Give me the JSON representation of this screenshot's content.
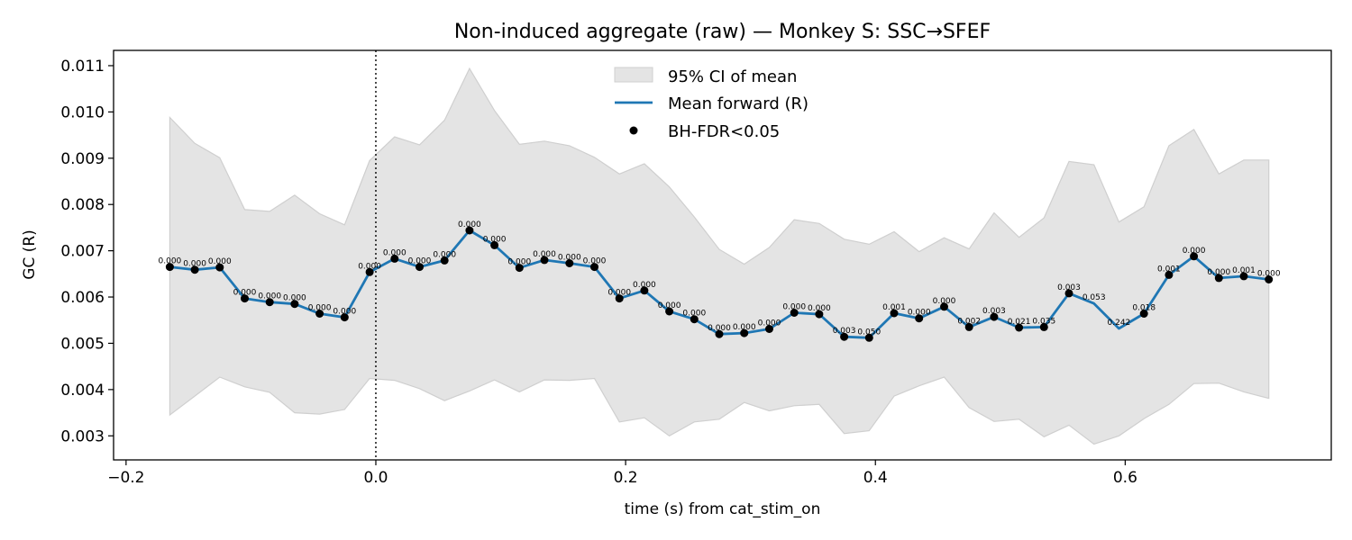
{
  "chart_data": {
    "type": "line",
    "title": "Non-induced aggregate (raw) — Monkey S: SSC→SFEF",
    "xlabel": "time (s) from cat_stim_on",
    "ylabel": "GC (R)",
    "xlim": [
      -0.21,
      0.765
    ],
    "ylim": [
      0.00248,
      0.01133
    ],
    "xticks": [
      -0.2,
      0.0,
      0.2,
      0.4,
      0.6
    ],
    "xtick_labels": [
      "−0.2",
      "0.0",
      "0.2",
      "0.4",
      "0.6"
    ],
    "yticks": [
      0.003,
      0.004,
      0.005,
      0.006,
      0.007,
      0.008,
      0.009,
      0.01,
      0.011
    ],
    "ytick_labels": [
      "0.003",
      "0.004",
      "0.005",
      "0.006",
      "0.007",
      "0.008",
      "0.009",
      "0.010",
      "0.011"
    ],
    "vline_x": 0.0,
    "grid": false,
    "legend_position": "top-center",
    "legend": [
      "95% CI of mean",
      "Mean forward (R)",
      "BH-FDR<0.05"
    ],
    "colors": {
      "line": "#1f77b4",
      "band": "#e4e4e4",
      "band_edge": "#cfcfcf",
      "marker": "#000000"
    },
    "x": [
      -0.165,
      -0.145,
      -0.125,
      -0.105,
      -0.085,
      -0.065,
      -0.045,
      -0.025,
      -0.005,
      0.015,
      0.035,
      0.055,
      0.075,
      0.095,
      0.115,
      0.135,
      0.155,
      0.175,
      0.195,
      0.215,
      0.235,
      0.255,
      0.275,
      0.295,
      0.315,
      0.335,
      0.355,
      0.375,
      0.395,
      0.415,
      0.435,
      0.455,
      0.475,
      0.495,
      0.515,
      0.535,
      0.555,
      0.575,
      0.595,
      0.615,
      0.635,
      0.655,
      0.675,
      0.695,
      0.715
    ],
    "mean": [
      0.00665,
      0.00659,
      0.00664,
      0.00597,
      0.00589,
      0.00585,
      0.00564,
      0.00556,
      0.00654,
      0.00683,
      0.00665,
      0.00679,
      0.00744,
      0.00712,
      0.00663,
      0.0068,
      0.00673,
      0.00665,
      0.00597,
      0.00614,
      0.00569,
      0.00552,
      0.0052,
      0.00522,
      0.00531,
      0.00566,
      0.00563,
      0.00514,
      0.00512,
      0.00565,
      0.00554,
      0.00579,
      0.00535,
      0.00557,
      0.00534,
      0.00535,
      0.00608,
      0.00586,
      0.00532,
      0.00564,
      0.00648,
      0.00688,
      0.00641,
      0.00645,
      0.00638
    ],
    "ci_upper": [
      0.00988,
      0.00932,
      0.00901,
      0.00789,
      0.00785,
      0.0082,
      0.0078,
      0.00756,
      0.00895,
      0.00946,
      0.00929,
      0.00982,
      0.01094,
      0.01003,
      0.0093,
      0.00937,
      0.00927,
      0.00902,
      0.00866,
      0.00888,
      0.00838,
      0.00773,
      0.00703,
      0.00671,
      0.00707,
      0.00767,
      0.00759,
      0.00725,
      0.00714,
      0.00741,
      0.00698,
      0.00728,
      0.00704,
      0.00782,
      0.00729,
      0.00771,
      0.00893,
      0.00886,
      0.00762,
      0.00795,
      0.00927,
      0.00962,
      0.00866,
      0.00896,
      0.00896
    ],
    "ci_lower": [
      0.00345,
      0.00386,
      0.00427,
      0.00406,
      0.00394,
      0.0035,
      0.00347,
      0.00357,
      0.00424,
      0.0042,
      0.00402,
      0.00376,
      0.00397,
      0.00421,
      0.00395,
      0.00421,
      0.0042,
      0.00424,
      0.0033,
      0.00339,
      0.003,
      0.0033,
      0.00336,
      0.00372,
      0.00354,
      0.00365,
      0.00368,
      0.00305,
      0.00311,
      0.00386,
      0.00408,
      0.00427,
      0.00361,
      0.00331,
      0.00336,
      0.00298,
      0.00323,
      0.00282,
      0.003,
      0.00337,
      0.00368,
      0.00413,
      0.00414,
      0.00395,
      0.00381
    ],
    "significant": [
      true,
      true,
      true,
      true,
      true,
      true,
      true,
      true,
      true,
      true,
      true,
      true,
      true,
      true,
      true,
      true,
      true,
      true,
      true,
      true,
      true,
      true,
      true,
      true,
      true,
      true,
      true,
      true,
      true,
      true,
      true,
      true,
      true,
      true,
      true,
      true,
      true,
      false,
      false,
      true,
      true,
      true,
      true,
      true,
      true
    ],
    "p_labels": [
      "0.000",
      "0.000",
      "0.000",
      "0.000",
      "0.000",
      "0.000",
      "0.000",
      "0.000",
      "0.000",
      "0.000",
      "0.000",
      "0.000",
      "0.000",
      "0.000",
      "0.000",
      "0.000",
      "0.000",
      "0.000",
      "0.000",
      "0.000",
      "0.000",
      "0.000",
      "0.000",
      "0.000",
      "0.000",
      "0.000",
      "0.000",
      "0.003",
      "0.050",
      "0.001",
      "0.000",
      "0.000",
      "0.002",
      "0.003",
      "0.021",
      "0.035",
      "0.003",
      "0.053",
      "0.242",
      "0.018",
      "0.001",
      "0.000",
      "0.000",
      "0.001",
      "0.000"
    ]
  }
}
